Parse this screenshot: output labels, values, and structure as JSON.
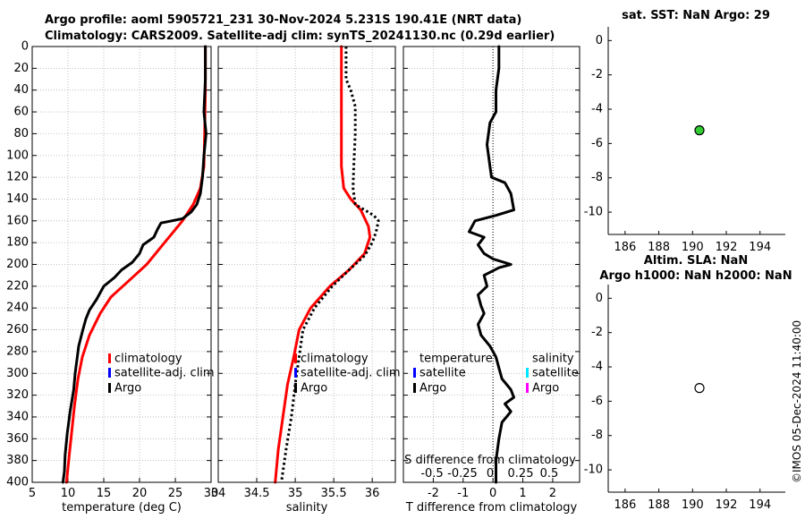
{
  "header": {
    "line1": "Argo profile: aoml 5905721_231 30-Nov-2024 5.231S 190.41E (NRT data)",
    "line2": "Climatology: CARS2009. Satellite-adj clim: synTS_20241130.nc (0.29d earlier)"
  },
  "timestamp": "©IMOS 05-Dec-2024 11:40:00",
  "colors": {
    "climatology": "#ff0000",
    "satellite": "#0000ff",
    "argo": "#000000",
    "sat_sal": "#00e5ff",
    "argo_sal": "#ff00ff",
    "sst_marker": "#33cc33"
  },
  "chart_data": [
    {
      "id": "temperature",
      "type": "line",
      "xlabel": "temperature (deg C)",
      "ylabel": "",
      "xlim": [
        5,
        30
      ],
      "ylim": [
        400,
        0
      ],
      "xticks": [
        5,
        10,
        15,
        20,
        25,
        30
      ],
      "yticks": [
        0,
        20,
        40,
        60,
        80,
        100,
        120,
        140,
        160,
        180,
        200,
        220,
        240,
        260,
        280,
        300,
        320,
        340,
        360,
        380,
        400
      ],
      "legend": [
        "climatology",
        "satellite-adj. clim",
        "Argo"
      ],
      "series": [
        {
          "name": "climatology",
          "style": "solid-red",
          "points": [
            [
              29.2,
              0
            ],
            [
              29.2,
              40
            ],
            [
              29.1,
              80
            ],
            [
              29.0,
              110
            ],
            [
              28.5,
              130
            ],
            [
              27.5,
              145
            ],
            [
              26.0,
              160
            ],
            [
              23.5,
              180
            ],
            [
              21.0,
              200
            ],
            [
              18.5,
              215
            ],
            [
              16.0,
              230
            ],
            [
              14.5,
              245
            ],
            [
              13.0,
              265
            ],
            [
              12.0,
              285
            ],
            [
              11.4,
              305
            ],
            [
              10.9,
              330
            ],
            [
              10.5,
              355
            ],
            [
              10.1,
              380
            ],
            [
              9.8,
              400
            ]
          ]
        },
        {
          "name": "Argo",
          "style": "solid-black",
          "points": [
            [
              29.2,
              0
            ],
            [
              29.2,
              30
            ],
            [
              29.0,
              60
            ],
            [
              29.3,
              80
            ],
            [
              29.0,
              100
            ],
            [
              28.8,
              120
            ],
            [
              28.5,
              135
            ],
            [
              28.0,
              145
            ],
            [
              27.2,
              152
            ],
            [
              26.0,
              158
            ],
            [
              24.5,
              160
            ],
            [
              23.0,
              162
            ],
            [
              22.5,
              168
            ],
            [
              22.0,
              175
            ],
            [
              20.5,
              182
            ],
            [
              20.0,
              190
            ],
            [
              19.0,
              198
            ],
            [
              17.5,
              205
            ],
            [
              16.5,
              212
            ],
            [
              15.0,
              220
            ],
            [
              14.0,
              232
            ],
            [
              13.0,
              242
            ],
            [
              12.5,
              250
            ],
            [
              12.0,
              262
            ],
            [
              11.5,
              275
            ],
            [
              11.2,
              290
            ],
            [
              11.0,
              300
            ],
            [
              10.8,
              315
            ],
            [
              10.3,
              335
            ],
            [
              9.9,
              355
            ],
            [
              9.6,
              375
            ],
            [
              9.5,
              390
            ],
            [
              9.3,
              400
            ]
          ]
        }
      ]
    },
    {
      "id": "salinity",
      "type": "line",
      "xlabel": "salinity",
      "xlim": [
        34,
        36.3
      ],
      "ylim": [
        400,
        0
      ],
      "xticks": [
        34,
        34.5,
        35,
        35.5,
        36
      ],
      "yticks": [
        0,
        20,
        40,
        60,
        80,
        100,
        120,
        140,
        160,
        180,
        200,
        220,
        240,
        260,
        280,
        300,
        320,
        340,
        360,
        380,
        400
      ],
      "legend": [
        "climatology",
        "satellite-adj. clim",
        "Argo"
      ],
      "series": [
        {
          "name": "climatology",
          "style": "solid-red",
          "points": [
            [
              35.6,
              0
            ],
            [
              35.6,
              40
            ],
            [
              35.6,
              80
            ],
            [
              35.6,
              110
            ],
            [
              35.63,
              130
            ],
            [
              35.72,
              140
            ],
            [
              35.85,
              150
            ],
            [
              35.95,
              165
            ],
            [
              35.97,
              175
            ],
            [
              35.9,
              190
            ],
            [
              35.7,
              205
            ],
            [
              35.45,
              220
            ],
            [
              35.2,
              240
            ],
            [
              35.05,
              260
            ],
            [
              34.98,
              285
            ],
            [
              34.9,
              310
            ],
            [
              34.84,
              340
            ],
            [
              34.78,
              370
            ],
            [
              34.74,
              400
            ]
          ]
        },
        {
          "name": "Argo",
          "style": "dotted-black",
          "points": [
            [
              35.66,
              0
            ],
            [
              35.66,
              30
            ],
            [
              35.72,
              40
            ],
            [
              35.78,
              55
            ],
            [
              35.78,
              80
            ],
            [
              35.76,
              110
            ],
            [
              35.75,
              130
            ],
            [
              35.78,
              145
            ],
            [
              35.9,
              150
            ],
            [
              36.02,
              155
            ],
            [
              36.08,
              160
            ],
            [
              36.05,
              170
            ],
            [
              36.0,
              180
            ],
            [
              35.9,
              192
            ],
            [
              35.7,
              205
            ],
            [
              35.48,
              220
            ],
            [
              35.25,
              240
            ],
            [
              35.1,
              260
            ],
            [
              35.05,
              285
            ],
            [
              35.0,
              310
            ],
            [
              34.95,
              340
            ],
            [
              34.88,
              370
            ],
            [
              34.82,
              400
            ]
          ]
        }
      ]
    },
    {
      "id": "difference",
      "type": "line",
      "xlabel": "T difference from climatology",
      "xlabel_top": "S difference from climatology",
      "xlim": [
        -3,
        2.9
      ],
      "ylim": [
        400,
        0
      ],
      "xticks": [
        -2,
        -1,
        0,
        1,
        2
      ],
      "sticks": [
        "-0.5",
        "-0.25",
        "0",
        "0.25",
        "0.5"
      ],
      "yticks": [
        0,
        20,
        40,
        60,
        80,
        100,
        120,
        140,
        160,
        180,
        200,
        220,
        240,
        260,
        280,
        300,
        320,
        340,
        360,
        380,
        400
      ],
      "legend_t": [
        "temperature",
        "satellite",
        "Argo"
      ],
      "legend_s": [
        "salinity",
        "satellite",
        "Argo"
      ],
      "series": [
        {
          "name": "Argo T diff",
          "style": "solid-black",
          "points": [
            [
              0.2,
              0
            ],
            [
              0.2,
              20
            ],
            [
              0.1,
              40
            ],
            [
              0.1,
              60
            ],
            [
              -0.1,
              70
            ],
            [
              -0.2,
              90
            ],
            [
              -0.1,
              110
            ],
            [
              -0.05,
              120
            ],
            [
              0.4,
              125
            ],
            [
              0.6,
              135
            ],
            [
              0.7,
              150
            ],
            [
              0.1,
              155
            ],
            [
              -0.6,
              160
            ],
            [
              -0.8,
              170
            ],
            [
              -0.3,
              175
            ],
            [
              -0.5,
              182
            ],
            [
              -0.3,
              190
            ],
            [
              0.0,
              195
            ],
            [
              0.6,
              200
            ],
            [
              0.2,
              203
            ],
            [
              -0.3,
              210
            ],
            [
              -0.2,
              220
            ],
            [
              -0.5,
              228
            ],
            [
              -0.4,
              238
            ],
            [
              -0.3,
              245
            ],
            [
              -0.5,
              255
            ],
            [
              -0.4,
              265
            ],
            [
              -0.1,
              275
            ],
            [
              0.1,
              285
            ],
            [
              0.2,
              295
            ],
            [
              0.3,
              305
            ],
            [
              0.6,
              315
            ],
            [
              0.7,
              322
            ],
            [
              0.4,
              328
            ],
            [
              0.6,
              335
            ],
            [
              0.3,
              345
            ],
            [
              0.2,
              360
            ],
            [
              0.1,
              380
            ],
            [
              0.1,
              400
            ]
          ]
        }
      ]
    },
    {
      "id": "sst",
      "type": "scatter",
      "title": "sat. SST: NaN Argo: 29",
      "xlim": [
        185,
        195.5
      ],
      "ylim": [
        -11.3,
        0.8
      ],
      "xticks": [
        186,
        188,
        190,
        192,
        194
      ],
      "yticks": [
        0,
        -2,
        -4,
        -6,
        -8,
        -10
      ],
      "points": [
        [
          190.41,
          -5.231
        ]
      ],
      "marker": "filled-green"
    },
    {
      "id": "sla",
      "type": "scatter",
      "title_line1": "Altim. SLA: NaN",
      "title_line2": "Argo h1000: NaN h2000: NaN",
      "xlim": [
        185,
        195.5
      ],
      "ylim": [
        -11.3,
        0.8
      ],
      "xticks": [
        186,
        188,
        190,
        192,
        194
      ],
      "yticks": [
        0,
        -2,
        -4,
        -6,
        -8,
        -10
      ],
      "points": [
        [
          190.41,
          -5.231
        ]
      ],
      "marker": "open-black"
    }
  ]
}
